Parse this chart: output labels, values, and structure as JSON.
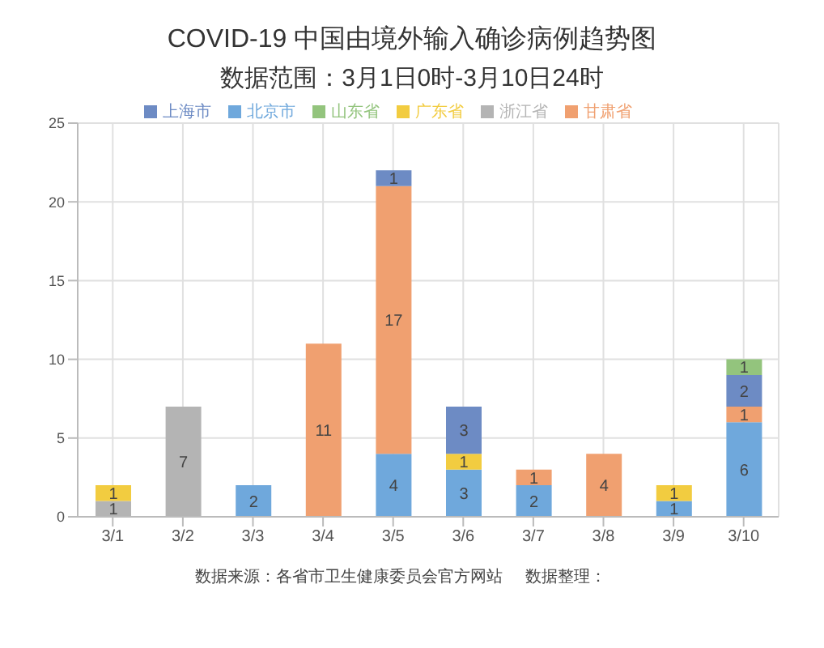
{
  "chart_data": {
    "type": "bar",
    "title": "COVID-19 中国由境外输入确诊病例趋势图",
    "subtitle": "数据范围：3月1日0时-3月10日24时",
    "categories": [
      "3/1",
      "3/2",
      "3/3",
      "3/4",
      "3/5",
      "3/6",
      "3/7",
      "3/8",
      "3/9",
      "3/10"
    ],
    "stacked": true,
    "series": [
      {
        "name": "北京市",
        "color": "#6fa8dc",
        "values": [
          null,
          null,
          2,
          null,
          4,
          3,
          2,
          null,
          1,
          6
        ]
      },
      {
        "name": "甘肃省",
        "color": "#f0a070",
        "values": [
          null,
          null,
          null,
          11,
          17,
          null,
          1,
          4,
          null,
          1
        ]
      },
      {
        "name": "浙江省",
        "color": "#b4b4b4",
        "values": [
          1,
          7,
          null,
          null,
          null,
          null,
          null,
          null,
          null,
          null
        ]
      },
      {
        "name": "广东省",
        "color": "#f2cc40",
        "values": [
          1,
          null,
          null,
          null,
          null,
          1,
          null,
          null,
          1,
          null
        ]
      },
      {
        "name": "上海市",
        "color": "#6d8bc4",
        "values": [
          null,
          null,
          null,
          null,
          1,
          3,
          null,
          null,
          null,
          2
        ]
      },
      {
        "name": "山东省",
        "color": "#93c47d",
        "values": [
          null,
          null,
          null,
          null,
          null,
          null,
          null,
          null,
          null,
          1
        ]
      }
    ],
    "ylim": [
      0,
      25
    ],
    "yticks": [
      0,
      5,
      10,
      15,
      20,
      25
    ],
    "grid": true,
    "legend": "top",
    "data_labels": true,
    "annotations": [
      "数据来源：各省市卫生健康委员会官方网站",
      "数据整理："
    ]
  }
}
